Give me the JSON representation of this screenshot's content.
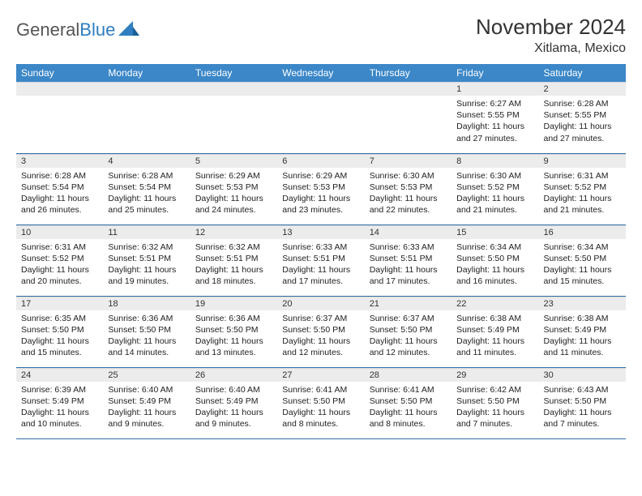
{
  "logo": {
    "text_gray": "General",
    "text_blue": "Blue"
  },
  "title": "November 2024",
  "location": "Xitlama, Mexico",
  "colors": {
    "header_bg": "#3b87c8",
    "header_text": "#ffffff",
    "daynum_bg": "#ececec",
    "row_divider": "#2f6fa8"
  },
  "weekdays": [
    "Sunday",
    "Monday",
    "Tuesday",
    "Wednesday",
    "Thursday",
    "Friday",
    "Saturday"
  ],
  "weeks": [
    [
      null,
      null,
      null,
      null,
      null,
      {
        "n": "1",
        "sr": "6:27 AM",
        "ss": "5:55 PM",
        "dl": "11 hours and 27 minutes."
      },
      {
        "n": "2",
        "sr": "6:28 AM",
        "ss": "5:55 PM",
        "dl": "11 hours and 27 minutes."
      }
    ],
    [
      {
        "n": "3",
        "sr": "6:28 AM",
        "ss": "5:54 PM",
        "dl": "11 hours and 26 minutes."
      },
      {
        "n": "4",
        "sr": "6:28 AM",
        "ss": "5:54 PM",
        "dl": "11 hours and 25 minutes."
      },
      {
        "n": "5",
        "sr": "6:29 AM",
        "ss": "5:53 PM",
        "dl": "11 hours and 24 minutes."
      },
      {
        "n": "6",
        "sr": "6:29 AM",
        "ss": "5:53 PM",
        "dl": "11 hours and 23 minutes."
      },
      {
        "n": "7",
        "sr": "6:30 AM",
        "ss": "5:53 PM",
        "dl": "11 hours and 22 minutes."
      },
      {
        "n": "8",
        "sr": "6:30 AM",
        "ss": "5:52 PM",
        "dl": "11 hours and 21 minutes."
      },
      {
        "n": "9",
        "sr": "6:31 AM",
        "ss": "5:52 PM",
        "dl": "11 hours and 21 minutes."
      }
    ],
    [
      {
        "n": "10",
        "sr": "6:31 AM",
        "ss": "5:52 PM",
        "dl": "11 hours and 20 minutes."
      },
      {
        "n": "11",
        "sr": "6:32 AM",
        "ss": "5:51 PM",
        "dl": "11 hours and 19 minutes."
      },
      {
        "n": "12",
        "sr": "6:32 AM",
        "ss": "5:51 PM",
        "dl": "11 hours and 18 minutes."
      },
      {
        "n": "13",
        "sr": "6:33 AM",
        "ss": "5:51 PM",
        "dl": "11 hours and 17 minutes."
      },
      {
        "n": "14",
        "sr": "6:33 AM",
        "ss": "5:51 PM",
        "dl": "11 hours and 17 minutes."
      },
      {
        "n": "15",
        "sr": "6:34 AM",
        "ss": "5:50 PM",
        "dl": "11 hours and 16 minutes."
      },
      {
        "n": "16",
        "sr": "6:34 AM",
        "ss": "5:50 PM",
        "dl": "11 hours and 15 minutes."
      }
    ],
    [
      {
        "n": "17",
        "sr": "6:35 AM",
        "ss": "5:50 PM",
        "dl": "11 hours and 15 minutes."
      },
      {
        "n": "18",
        "sr": "6:36 AM",
        "ss": "5:50 PM",
        "dl": "11 hours and 14 minutes."
      },
      {
        "n": "19",
        "sr": "6:36 AM",
        "ss": "5:50 PM",
        "dl": "11 hours and 13 minutes."
      },
      {
        "n": "20",
        "sr": "6:37 AM",
        "ss": "5:50 PM",
        "dl": "11 hours and 12 minutes."
      },
      {
        "n": "21",
        "sr": "6:37 AM",
        "ss": "5:50 PM",
        "dl": "11 hours and 12 minutes."
      },
      {
        "n": "22",
        "sr": "6:38 AM",
        "ss": "5:49 PM",
        "dl": "11 hours and 11 minutes."
      },
      {
        "n": "23",
        "sr": "6:38 AM",
        "ss": "5:49 PM",
        "dl": "11 hours and 11 minutes."
      }
    ],
    [
      {
        "n": "24",
        "sr": "6:39 AM",
        "ss": "5:49 PM",
        "dl": "11 hours and 10 minutes."
      },
      {
        "n": "25",
        "sr": "6:40 AM",
        "ss": "5:49 PM",
        "dl": "11 hours and 9 minutes."
      },
      {
        "n": "26",
        "sr": "6:40 AM",
        "ss": "5:49 PM",
        "dl": "11 hours and 9 minutes."
      },
      {
        "n": "27",
        "sr": "6:41 AM",
        "ss": "5:50 PM",
        "dl": "11 hours and 8 minutes."
      },
      {
        "n": "28",
        "sr": "6:41 AM",
        "ss": "5:50 PM",
        "dl": "11 hours and 8 minutes."
      },
      {
        "n": "29",
        "sr": "6:42 AM",
        "ss": "5:50 PM",
        "dl": "11 hours and 7 minutes."
      },
      {
        "n": "30",
        "sr": "6:43 AM",
        "ss": "5:50 PM",
        "dl": "11 hours and 7 minutes."
      }
    ]
  ],
  "labels": {
    "sunrise": "Sunrise:",
    "sunset": "Sunset:",
    "daylight": "Daylight:"
  }
}
